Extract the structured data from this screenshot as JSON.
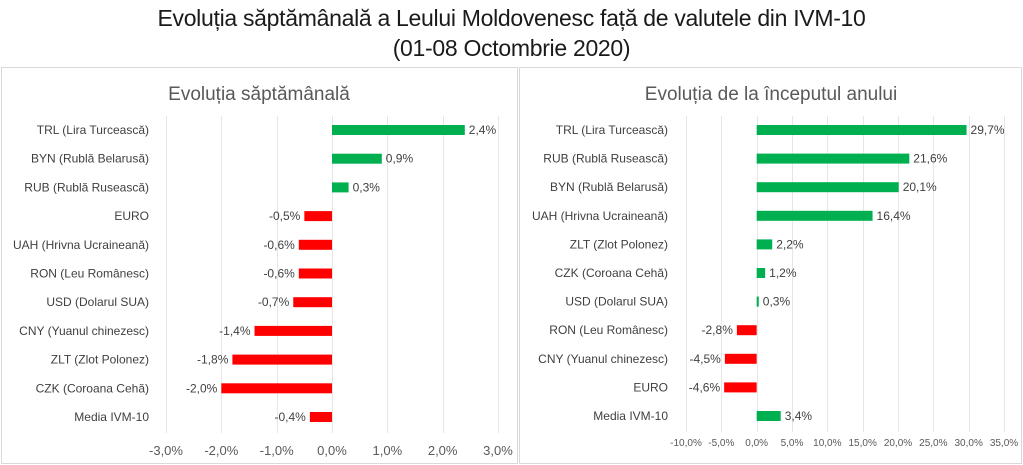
{
  "header": {
    "title_line1": "Evoluția săptămânală a Leului Moldovenesc față de valutele din IVM-10",
    "title_line2": "(01-08 Octombrie 2020)"
  },
  "colors": {
    "positive": "#00b050",
    "negative": "#ff0000",
    "gridline": "#e6e6e6",
    "border": "#d9d9d9",
    "text": "#404040"
  },
  "chart_data": [
    {
      "type": "bar",
      "orientation": "horizontal",
      "title": "Evoluția săptămânală",
      "xlabel": "",
      "ylabel": "",
      "categories": [
        "TRL (Lira Turcească)",
        "BYN (Rublă Belarusă)",
        "RUB (Rublă Rusească)",
        "EURO",
        "UAH (Hrivna Ucraineană)",
        "RON (Leu Românesc)",
        "USD (Dolarul SUA)",
        "CNY (Yuanul chinezesc)",
        "ZLT (Zlot Polonez)",
        "CZK (Coroana Cehă)",
        "Media IVM-10"
      ],
      "values": [
        2.4,
        0.9,
        0.3,
        -0.5,
        -0.6,
        -0.6,
        -0.7,
        -1.4,
        -1.8,
        -2.0,
        -0.4
      ],
      "value_labels": [
        "2,4%",
        "0,9%",
        "0,3%",
        "-0,5%",
        "-0,6%",
        "-0,6%",
        "-0,7%",
        "-1,4%",
        "-1,8%",
        "-2,0%",
        "-0,4%"
      ],
      "xlim": [
        -3.0,
        3.0
      ],
      "x_ticks": [
        -3,
        -2,
        -1,
        0,
        1,
        2,
        3
      ],
      "x_tick_labels": [
        "-3,0%",
        "-2,0%",
        "-1,0%",
        "0,0%",
        "1,0%",
        "2,0%",
        "3,0%"
      ],
      "grid": "vertical",
      "legend": "none"
    },
    {
      "type": "bar",
      "orientation": "horizontal",
      "title": "Evoluția de la începutul anului",
      "xlabel": "",
      "ylabel": "",
      "categories": [
        "TRL (Lira Turcească)",
        "RUB (Rublă Rusească)",
        "BYN (Rublă Belarusă)",
        "UAH (Hrivna Ucraineană)",
        "ZLT (Zlot Polonez)",
        "CZK (Coroana Cehă)",
        "USD (Dolarul SUA)",
        "RON (Leu Românesc)",
        "CNY (Yuanul chinezesc)",
        "EURO",
        "Media IVM-10"
      ],
      "values": [
        29.7,
        21.6,
        20.1,
        16.4,
        2.2,
        1.2,
        0.3,
        -2.8,
        -4.5,
        -4.6,
        3.4
      ],
      "value_labels": [
        "29,7%",
        "21,6%",
        "20,1%",
        "16,4%",
        "2,2%",
        "1,2%",
        "0,3%",
        "-2,8%",
        "-4,5%",
        "-4,6%",
        "3,4%"
      ],
      "xlim": [
        -10.0,
        35.0
      ],
      "x_ticks": [
        -10,
        -5,
        0,
        5,
        10,
        15,
        20,
        25,
        30,
        35
      ],
      "x_tick_labels": [
        "-10,0%",
        "-5,0%",
        "0,0%",
        "5,0%",
        "10,0%",
        "15,0%",
        "20,0%",
        "25,0%",
        "30,0%",
        "35,0%"
      ],
      "grid": "vertical",
      "legend": "none"
    }
  ]
}
